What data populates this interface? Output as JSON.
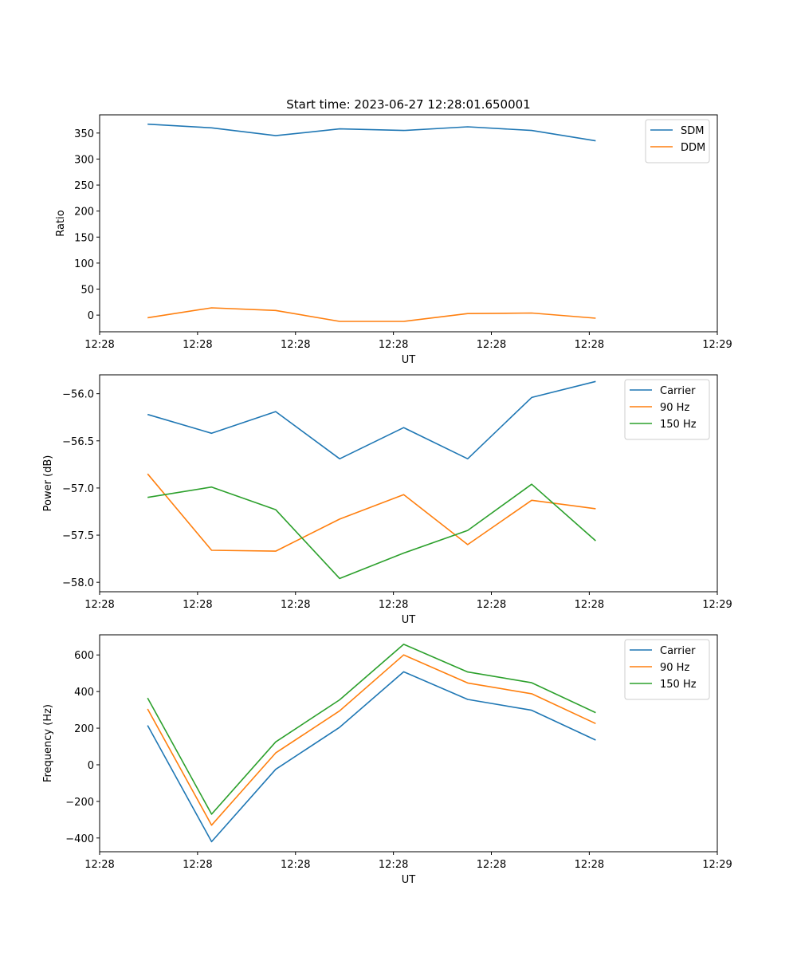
{
  "title": "Start time: 2023-06-27 12:28:01.650001",
  "chart_data": [
    {
      "type": "line",
      "title": "Start time: 2023-06-27 12:28:01.650001",
      "xlabel": "UT",
      "ylabel": "Ratio",
      "ylim": [
        -32,
        385
      ],
      "yticks": [
        0,
        50,
        100,
        150,
        200,
        250,
        300,
        350
      ],
      "yticklabels": [
        "0",
        "50",
        "100",
        "150",
        "200",
        "250",
        "300",
        "350"
      ],
      "xlim": [
        -0.75,
        8.9
      ],
      "xticks": [
        -0.75,
        0.78,
        2.31,
        3.84,
        5.37,
        6.9,
        8.9
      ],
      "xticklabels": [
        "12:28",
        "12:28",
        "12:28",
        "12:28",
        "12:28",
        "12:28",
        "12:29"
      ],
      "x": [
        0,
        1,
        2,
        3,
        4,
        5,
        6,
        7
      ],
      "legend": "top-right",
      "grid": false,
      "series": [
        {
          "name": "SDM",
          "color": "#1f77b4",
          "values": [
            367,
            360,
            345,
            358,
            355,
            362,
            355,
            335
          ]
        },
        {
          "name": "DDM",
          "color": "#ff7f0e",
          "values": [
            -5,
            14,
            9,
            -12,
            -12,
            3,
            4,
            -6
          ]
        }
      ]
    },
    {
      "type": "line",
      "xlabel": "UT",
      "ylabel": "Power (dB)",
      "ylim": [
        -58.1,
        -55.8
      ],
      "yticks": [
        -58.0,
        -57.5,
        -57.0,
        -56.5,
        -56.0
      ],
      "yticklabels": [
        "−58.0",
        "−57.5",
        "−57.0",
        "−56.5",
        "−56.0"
      ],
      "xlim": [
        -0.75,
        8.9
      ],
      "xticks": [
        -0.75,
        0.78,
        2.31,
        3.84,
        5.37,
        6.9,
        8.9
      ],
      "xticklabels": [
        "12:28",
        "12:28",
        "12:28",
        "12:28",
        "12:28",
        "12:28",
        "12:29"
      ],
      "x": [
        0,
        1,
        2,
        3,
        4,
        5,
        6,
        7
      ],
      "legend": "top-right",
      "grid": false,
      "series": [
        {
          "name": "Carrier",
          "color": "#1f77b4",
          "values": [
            -56.22,
            -56.42,
            -56.19,
            -56.69,
            -56.36,
            -56.69,
            -56.04,
            -55.87
          ]
        },
        {
          "name": "90 Hz",
          "color": "#ff7f0e",
          "values": [
            -56.85,
            -57.66,
            -57.67,
            -57.33,
            -57.07,
            -57.6,
            -57.13,
            -57.22
          ]
        },
        {
          "name": "150 Hz",
          "color": "#2ca02c",
          "values": [
            -57.1,
            -56.99,
            -57.23,
            -57.96,
            -57.69,
            -57.45,
            -56.96,
            -57.56
          ]
        }
      ]
    },
    {
      "type": "line",
      "xlabel": "UT",
      "ylabel": "Frequency (Hz)",
      "ylim": [
        -475,
        710
      ],
      "yticks": [
        -400,
        -200,
        0,
        200,
        400,
        600
      ],
      "yticklabels": [
        "−400",
        "−200",
        "0",
        "200",
        "400",
        "600"
      ],
      "xlim": [
        -0.75,
        8.9
      ],
      "xticks": [
        -0.75,
        0.78,
        2.31,
        3.84,
        5.37,
        6.9,
        8.9
      ],
      "xticklabels": [
        "12:28",
        "12:28",
        "12:28",
        "12:28",
        "12:28",
        "12:28",
        "12:29"
      ],
      "x": [
        0,
        1,
        2,
        3,
        4,
        5,
        6,
        7
      ],
      "legend": "top-right",
      "grid": false,
      "series": [
        {
          "name": "Carrier",
          "color": "#1f77b4",
          "values": [
            215,
            -420,
            -25,
            205,
            508,
            357,
            298,
            135
          ]
        },
        {
          "name": "90 Hz",
          "color": "#ff7f0e",
          "values": [
            305,
            -330,
            65,
            295,
            600,
            447,
            388,
            225
          ]
        },
        {
          "name": "150 Hz",
          "color": "#2ca02c",
          "values": [
            365,
            -270,
            125,
            355,
            658,
            507,
            448,
            285
          ]
        }
      ]
    }
  ]
}
